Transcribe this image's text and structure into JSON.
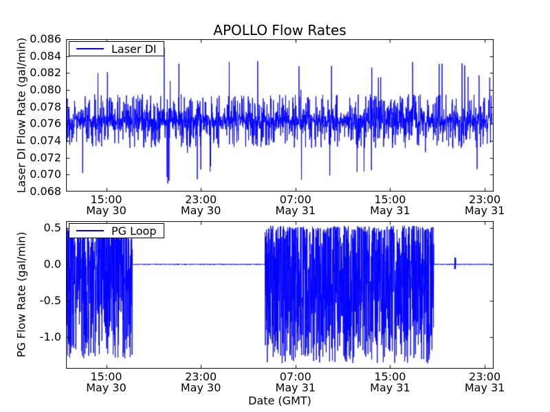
{
  "chart_data": [
    {
      "type": "line",
      "subplot": "top",
      "title": "APOLLO Flow Rates",
      "ylabel": "Laser DI Flow Rate (gal/min)",
      "legend": {
        "label": "Laser DI",
        "position": "upper left"
      },
      "line_color": "#0000ff",
      "axes_color": "#000000",
      "grid": false,
      "xlim_hours_from_may30_0000": [
        11.6,
        47.75
      ],
      "ylim": [
        0.068,
        0.086
      ],
      "yticks": [
        {
          "value": 0.086,
          "label": "0.086"
        },
        {
          "value": 0.084,
          "label": "0.084"
        },
        {
          "value": 0.082,
          "label": "0.082"
        },
        {
          "value": 0.08,
          "label": "0.080"
        },
        {
          "value": 0.078,
          "label": "0.078"
        },
        {
          "value": 0.076,
          "label": "0.076"
        },
        {
          "value": 0.074,
          "label": "0.074"
        },
        {
          "value": 0.072,
          "label": "0.072"
        },
        {
          "value": 0.07,
          "label": "0.070"
        },
        {
          "value": 0.068,
          "label": "0.068"
        }
      ],
      "xticks": [
        {
          "hours": 15,
          "time": "15:00",
          "date": "May 30"
        },
        {
          "hours": 23,
          "time": "23:00",
          "date": "May 30"
        },
        {
          "hours": 31,
          "time": "07:00",
          "date": "May 31"
        },
        {
          "hours": 39,
          "time": "15:00",
          "date": "May 31"
        },
        {
          "hours": 47,
          "time": "23:00",
          "date": "May 31"
        }
      ],
      "series": {
        "name": "Laser DI",
        "kind": "noisy",
        "data_start_hours": 11.6,
        "data_end_hours": 47.6,
        "n_points": 2200,
        "seed": 42,
        "baseline": 0.0763,
        "sigma": 0.0005,
        "excursion_prob": 0.3,
        "excursion_range": [
          0.0008,
          0.0032
        ],
        "spike_prob": 0.012,
        "spike_range": [
          0.0036,
          0.0075
        ],
        "clamp": [
          0.0689,
          0.0851
        ],
        "active_window": {
          "start_hours": 37.3,
          "end_hours": 41.2,
          "excursion_prob": 0.5,
          "positive_bias": 0.6
        },
        "landmark_points": [
          {
            "hours": 13.0,
            "value": 0.0702
          },
          {
            "hours": 14.3,
            "value": 0.082
          },
          {
            "hours": 15.1,
            "value": 0.0821
          },
          {
            "hours": 19.9,
            "value": 0.085
          },
          {
            "hours": 20.15,
            "value": 0.0697
          },
          {
            "hours": 23.0,
            "value": 0.0706
          },
          {
            "hours": 25.4,
            "value": 0.0833
          },
          {
            "hours": 27.8,
            "value": 0.0834
          },
          {
            "hours": 31.3,
            "value": 0.0828
          },
          {
            "hours": 31.5,
            "value": 0.0694
          },
          {
            "hours": 33.9,
            "value": 0.0699
          },
          {
            "hours": 36.2,
            "value": 0.0703
          },
          {
            "hours": 38.2,
            "value": 0.0815
          },
          {
            "hours": 40.9,
            "value": 0.0833
          },
          {
            "hours": 43.4,
            "value": 0.0831
          },
          {
            "hours": 45.3,
            "value": 0.0829
          }
        ]
      }
    },
    {
      "type": "line",
      "subplot": "bottom",
      "xlabel": "Date (GMT)",
      "ylabel": "PG Flow Rate (gal/min)",
      "legend": {
        "label": "PG Loop",
        "position": "upper left"
      },
      "line_color": "#0000ff",
      "axes_color": "#000000",
      "grid": false,
      "xlim_hours_from_may30_0000": [
        11.6,
        47.75
      ],
      "ylim": [
        -1.434,
        0.594
      ],
      "yticks": [
        {
          "value": 0.5,
          "label": "0.5"
        },
        {
          "value": 0.0,
          "label": "0.0"
        },
        {
          "value": -0.5,
          "label": "-0.5"
        },
        {
          "value": -1.0,
          "label": "-1.0"
        }
      ],
      "xticks": [
        {
          "hours": 15,
          "time": "15:00",
          "date": "May 30"
        },
        {
          "hours": 23,
          "time": "23:00",
          "date": "May 30"
        },
        {
          "hours": 31,
          "time": "07:00",
          "date": "May 31"
        },
        {
          "hours": 39,
          "time": "15:00",
          "date": "May 31"
        },
        {
          "hours": 47,
          "time": "23:00",
          "date": "May 31"
        }
      ],
      "series": {
        "name": "PG Loop",
        "kind": "segmented",
        "data_start_hours": 11.6,
        "data_end_hours": 47.6,
        "n_points": 3000,
        "seed": 7,
        "flat_sigma": 0.003,
        "segments": [
          {
            "start_hours": 11.6,
            "end_hours": 17.2,
            "mode": "oscillating",
            "max": 0.52,
            "typical_low": -1.15,
            "extreme_low": -1.3
          },
          {
            "start_hours": 17.2,
            "end_hours": 28.42,
            "mode": "flat",
            "value": 0.0
          },
          {
            "start_hours": 28.42,
            "end_hours": 42.7,
            "mode": "oscillating",
            "max": 0.53,
            "typical_low": -1.18,
            "extreme_low": -1.36
          },
          {
            "start_hours": 42.7,
            "end_hours": 47.6,
            "mode": "flat",
            "value": 0.0
          }
        ],
        "blips": [
          {
            "hours": 44.5,
            "amplitude": 0.09
          }
        ]
      }
    }
  ]
}
